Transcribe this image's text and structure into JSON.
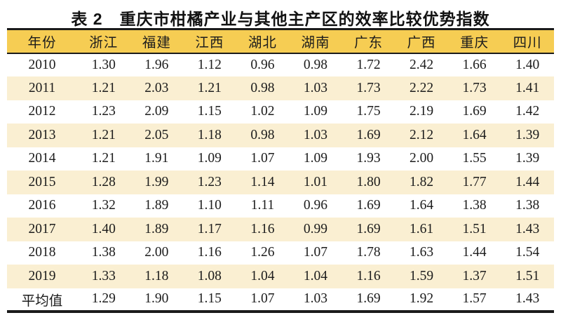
{
  "title": "表 2　重庆市柑橘产业与其他主产区的效率比较优势指数",
  "colors": {
    "header_bg": "#f6cd53",
    "stripe_bg": "#faefd2",
    "rule": "#1b1b1b",
    "text": "#1c1c1c",
    "page_bg": "#ffffff"
  },
  "chart_data": {
    "type": "table",
    "title": "表 2　重庆市柑橘产业与其他主产区的效率比较优势指数",
    "columns": [
      "年份",
      "浙江",
      "福建",
      "江西",
      "湖北",
      "湖南",
      "广东",
      "广西",
      "重庆",
      "四川"
    ],
    "rows": [
      {
        "label": "2010",
        "values": [
          "1.30",
          "1.96",
          "1.12",
          "0.96",
          "0.98",
          "1.72",
          "2.42",
          "1.66",
          "1.40"
        ]
      },
      {
        "label": "2011",
        "values": [
          "1.21",
          "2.03",
          "1.21",
          "0.98",
          "1.03",
          "1.73",
          "2.22",
          "1.73",
          "1.41"
        ]
      },
      {
        "label": "2012",
        "values": [
          "1.23",
          "2.09",
          "1.15",
          "1.02",
          "1.09",
          "1.75",
          "2.19",
          "1.69",
          "1.42"
        ]
      },
      {
        "label": "2013",
        "values": [
          "1.21",
          "2.05",
          "1.18",
          "0.98",
          "1.03",
          "1.69",
          "2.12",
          "1.64",
          "1.39"
        ]
      },
      {
        "label": "2014",
        "values": [
          "1.21",
          "1.91",
          "1.09",
          "1.07",
          "1.09",
          "1.93",
          "2.00",
          "1.55",
          "1.39"
        ]
      },
      {
        "label": "2015",
        "values": [
          "1.28",
          "1.99",
          "1.23",
          "1.14",
          "1.01",
          "1.80",
          "1.82",
          "1.77",
          "1.44"
        ]
      },
      {
        "label": "2016",
        "values": [
          "1.32",
          "1.89",
          "1.10",
          "1.11",
          "0.96",
          "1.69",
          "1.64",
          "1.38",
          "1.38"
        ]
      },
      {
        "label": "2017",
        "values": [
          "1.40",
          "1.89",
          "1.17",
          "1.16",
          "0.99",
          "1.69",
          "1.61",
          "1.51",
          "1.43"
        ]
      },
      {
        "label": "2018",
        "values": [
          "1.38",
          "2.00",
          "1.16",
          "1.26",
          "1.07",
          "1.78",
          "1.63",
          "1.44",
          "1.54"
        ]
      },
      {
        "label": "2019",
        "values": [
          "1.33",
          "1.18",
          "1.08",
          "1.04",
          "1.04",
          "1.16",
          "1.59",
          "1.37",
          "1.51"
        ]
      },
      {
        "label": "平均值",
        "values": [
          "1.29",
          "1.90",
          "1.15",
          "1.07",
          "1.03",
          "1.69",
          "1.92",
          "1.57",
          "1.43"
        ]
      }
    ]
  }
}
